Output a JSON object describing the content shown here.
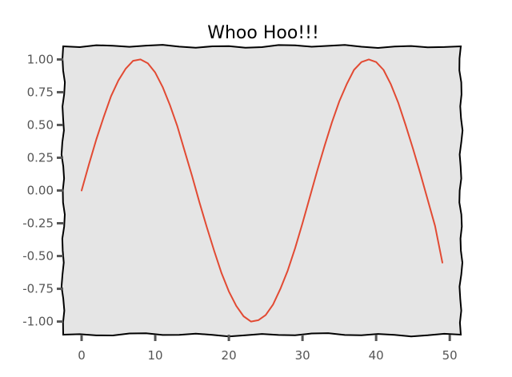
{
  "chart_data": {
    "type": "line",
    "title": "Whoo Hoo!!!",
    "xlabel": "",
    "ylabel": "",
    "xlim": [
      -2.5,
      51.5
    ],
    "ylim": [
      -1.1,
      1.1
    ],
    "x_ticks": [
      0,
      10,
      20,
      30,
      40,
      50
    ],
    "x_tick_labels": [
      "0",
      "10",
      "20",
      "30",
      "40",
      "50"
    ],
    "y_ticks": [
      1.0,
      0.75,
      0.5,
      0.25,
      0.0,
      -0.25,
      -0.5,
      -0.75,
      -1.0
    ],
    "y_tick_labels": [
      "1.00",
      "0.75",
      "0.50",
      "0.25",
      "0.00",
      "-0.25",
      "-0.50",
      "-0.75",
      "-1.00"
    ],
    "grid": false,
    "background_color": "#e5e5e5",
    "series": [
      {
        "color": "#e24a33",
        "x": [
          0,
          1,
          2,
          3,
          4,
          5,
          6,
          7,
          8,
          9,
          10,
          11,
          12,
          13,
          14,
          15,
          16,
          17,
          18,
          19,
          20,
          21,
          22,
          23,
          24,
          25,
          26,
          27,
          28,
          29,
          30,
          31,
          32,
          33,
          34,
          35,
          36,
          37,
          38,
          39,
          40,
          41,
          42,
          43,
          44,
          45,
          46,
          47,
          48,
          49
        ],
        "y": [
          0.0,
          0.2,
          0.39,
          0.56,
          0.72,
          0.84,
          0.93,
          0.99,
          1.0,
          0.97,
          0.9,
          0.79,
          0.65,
          0.49,
          0.3,
          0.11,
          -0.09,
          -0.28,
          -0.46,
          -0.63,
          -0.77,
          -0.88,
          -0.96,
          -1.0,
          -0.99,
          -0.95,
          -0.87,
          -0.75,
          -0.61,
          -0.44,
          -0.25,
          -0.05,
          0.15,
          0.34,
          0.52,
          0.68,
          0.81,
          0.92,
          0.98,
          1.0,
          0.98,
          0.92,
          0.81,
          0.67,
          0.5,
          0.32,
          0.13,
          -0.07,
          -0.27,
          -0.55
        ]
      }
    ]
  }
}
